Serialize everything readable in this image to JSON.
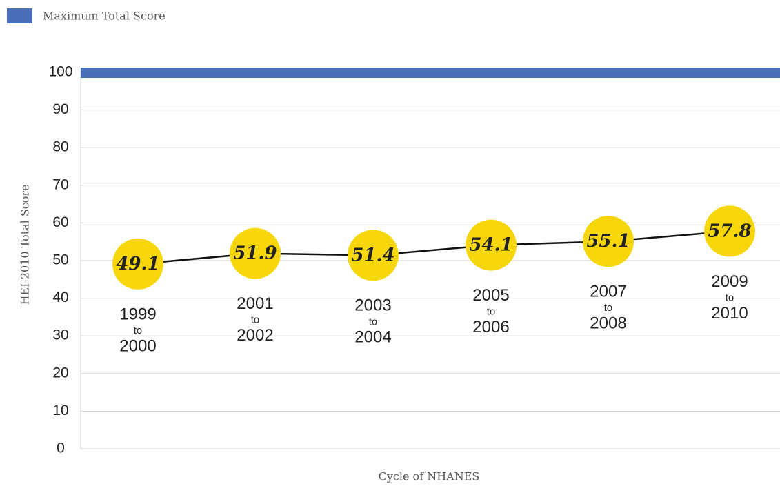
{
  "chart_data": {
    "type": "line",
    "reference_line": {
      "name": "Maximum Total Score",
      "value": 100,
      "color": "#4a6fb8"
    },
    "categories": [
      [
        "1999",
        "to",
        "2000"
      ],
      [
        "2001",
        "to",
        "2002"
      ],
      [
        "2003",
        "to",
        "2004"
      ],
      [
        "2005",
        "to",
        "2006"
      ],
      [
        "2007",
        "to",
        "2008"
      ],
      [
        "2009",
        "to",
        "2010"
      ]
    ],
    "values": [
      49.1,
      51.9,
      51.4,
      54.1,
      55.1,
      57.8
    ],
    "line_color": "#111111",
    "marker_color": "#f7d70b",
    "ylabel": "HEI-2010 Total Score",
    "xlabel": "Cycle of NHANES",
    "ylim": [
      0,
      100
    ],
    "yticks": [
      0,
      10,
      20,
      30,
      40,
      50,
      60,
      70,
      80,
      90,
      100
    ],
    "grid": true,
    "legend": "top-left"
  }
}
